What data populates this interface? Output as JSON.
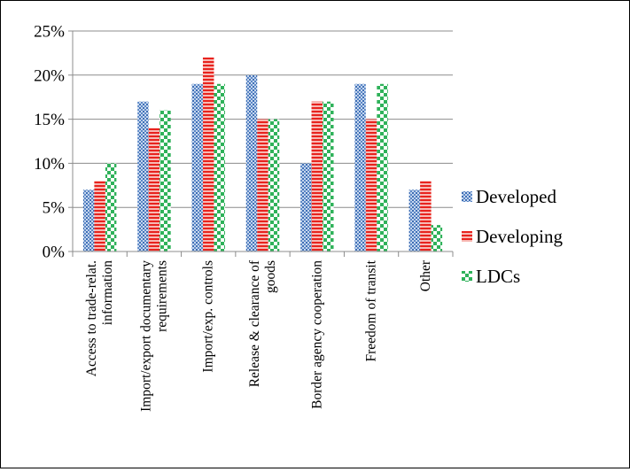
{
  "chart_data": {
    "type": "bar",
    "categories": [
      [
        "Access to trade-relat.",
        "information"
      ],
      [
        "Import/export documentary",
        "requirements"
      ],
      [
        "Import/exp. controls"
      ],
      [
        "Release & clearance of",
        "goods"
      ],
      [
        "Border agency cooperation"
      ],
      [
        "Freedom of transit"
      ],
      [
        "Other"
      ]
    ],
    "series": [
      {
        "name": "Developed",
        "values": [
          7,
          17,
          19,
          20,
          10,
          19,
          7
        ],
        "color": "#4f81bd",
        "pattern": "blue-dots"
      },
      {
        "name": "Developing",
        "values": [
          8,
          14,
          22,
          15,
          17,
          15,
          8
        ],
        "color": "#e8231e",
        "pattern": "red-lines"
      },
      {
        "name": "LDCs",
        "values": [
          10,
          16,
          19,
          15,
          17,
          19,
          3
        ],
        "color": "#2fb25a",
        "pattern": "green-checker"
      }
    ],
    "ylim": [
      0,
      25
    ],
    "yticks": [
      0,
      5,
      10,
      15,
      20,
      25
    ],
    "ytick_format": "percent",
    "grid": true,
    "legend_position": "right"
  }
}
